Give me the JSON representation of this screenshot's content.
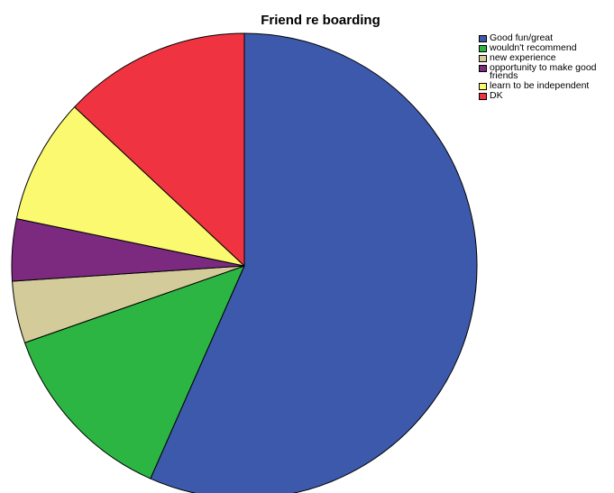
{
  "chart_data": {
    "type": "pie",
    "title": "Friend re boarding",
    "categories": [
      "Good fun/great",
      "wouldn't recommend",
      "new experience",
      "opportunity to make good friends",
      "learn to be independent",
      "DK"
    ],
    "values": [
      56.5,
      13.0,
      4.3,
      4.3,
      8.7,
      13.0
    ],
    "colors": [
      "#3d59ab",
      "#2db543",
      "#d3cc9a",
      "#7b2a80",
      "#faf96f",
      "#ef3340"
    ],
    "start_angle": "12 o'clock",
    "direction": "clockwise",
    "legend": "top-right"
  }
}
